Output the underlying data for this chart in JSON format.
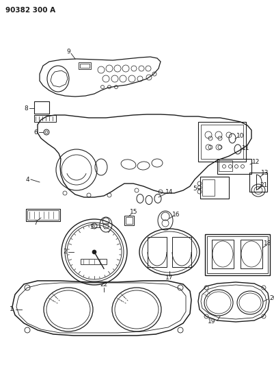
{
  "title": "90382 300 A",
  "background_color": "#ffffff",
  "line_color": "#1a1a1a",
  "fig_width": 4.02,
  "fig_height": 5.33,
  "dpi": 100
}
